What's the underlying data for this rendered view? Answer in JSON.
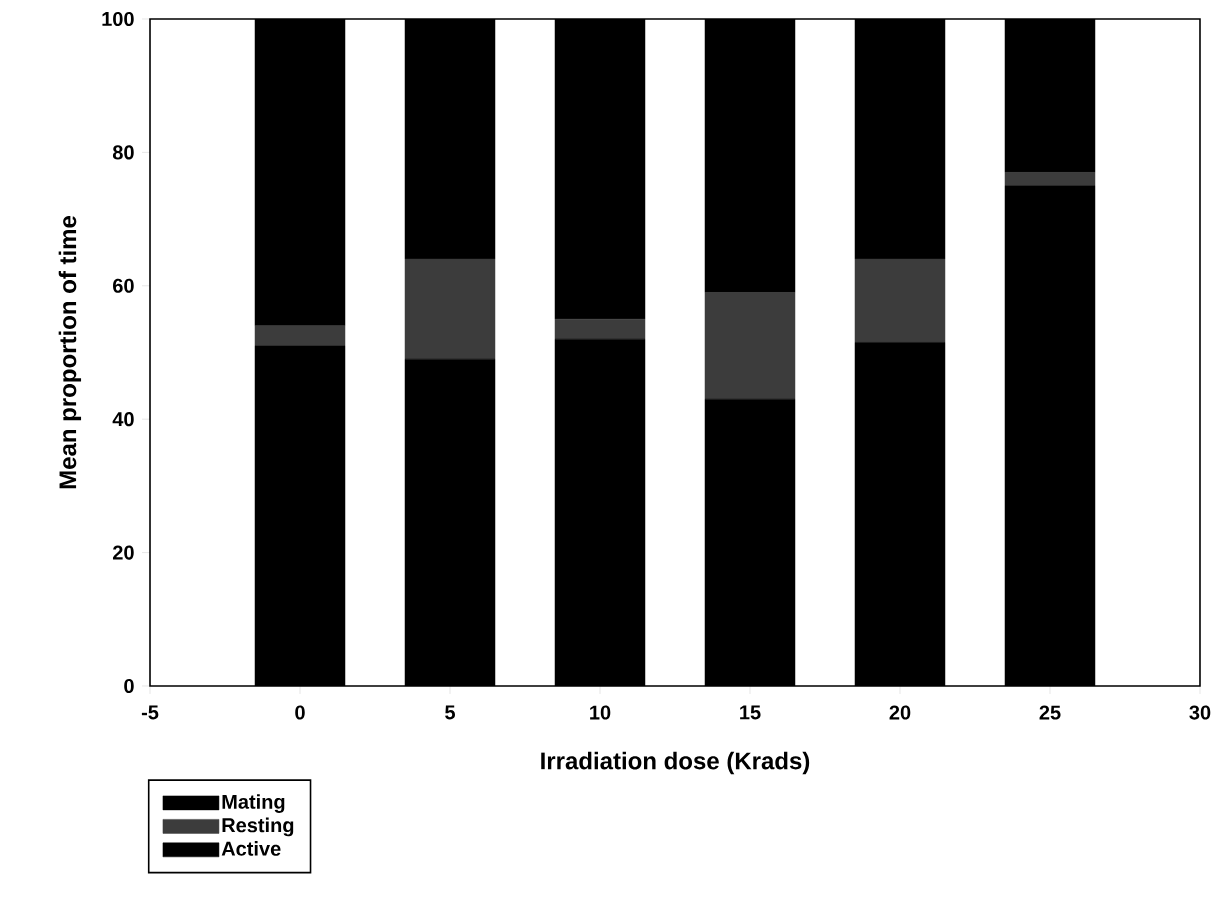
{
  "chart_data": {
    "type": "bar",
    "stacked": true,
    "xlabel": "Irradiation dose (Krads)",
    "ylabel": "Mean proportion of time",
    "x": [
      0,
      5,
      10,
      15,
      20,
      25
    ],
    "series": [
      {
        "name": "Mating",
        "color": "#000000",
        "values": [
          51,
          49,
          52,
          43,
          51.5,
          75
        ]
      },
      {
        "name": "Resting",
        "color": "#3c3c3c",
        "values": [
          3,
          15,
          3,
          16,
          12.5,
          2
        ]
      },
      {
        "name": "Active",
        "color": "#000000",
        "values": [
          46,
          36,
          45,
          41,
          36,
          23
        ]
      }
    ],
    "xlim": [
      -5,
      30
    ],
    "xticks": [
      -5,
      0,
      5,
      10,
      15,
      20,
      25,
      30
    ],
    "ylim": [
      0,
      100
    ],
    "yticks": [
      0,
      20,
      40,
      60,
      80,
      100
    ],
    "grid": false,
    "legend": "bottom left"
  }
}
